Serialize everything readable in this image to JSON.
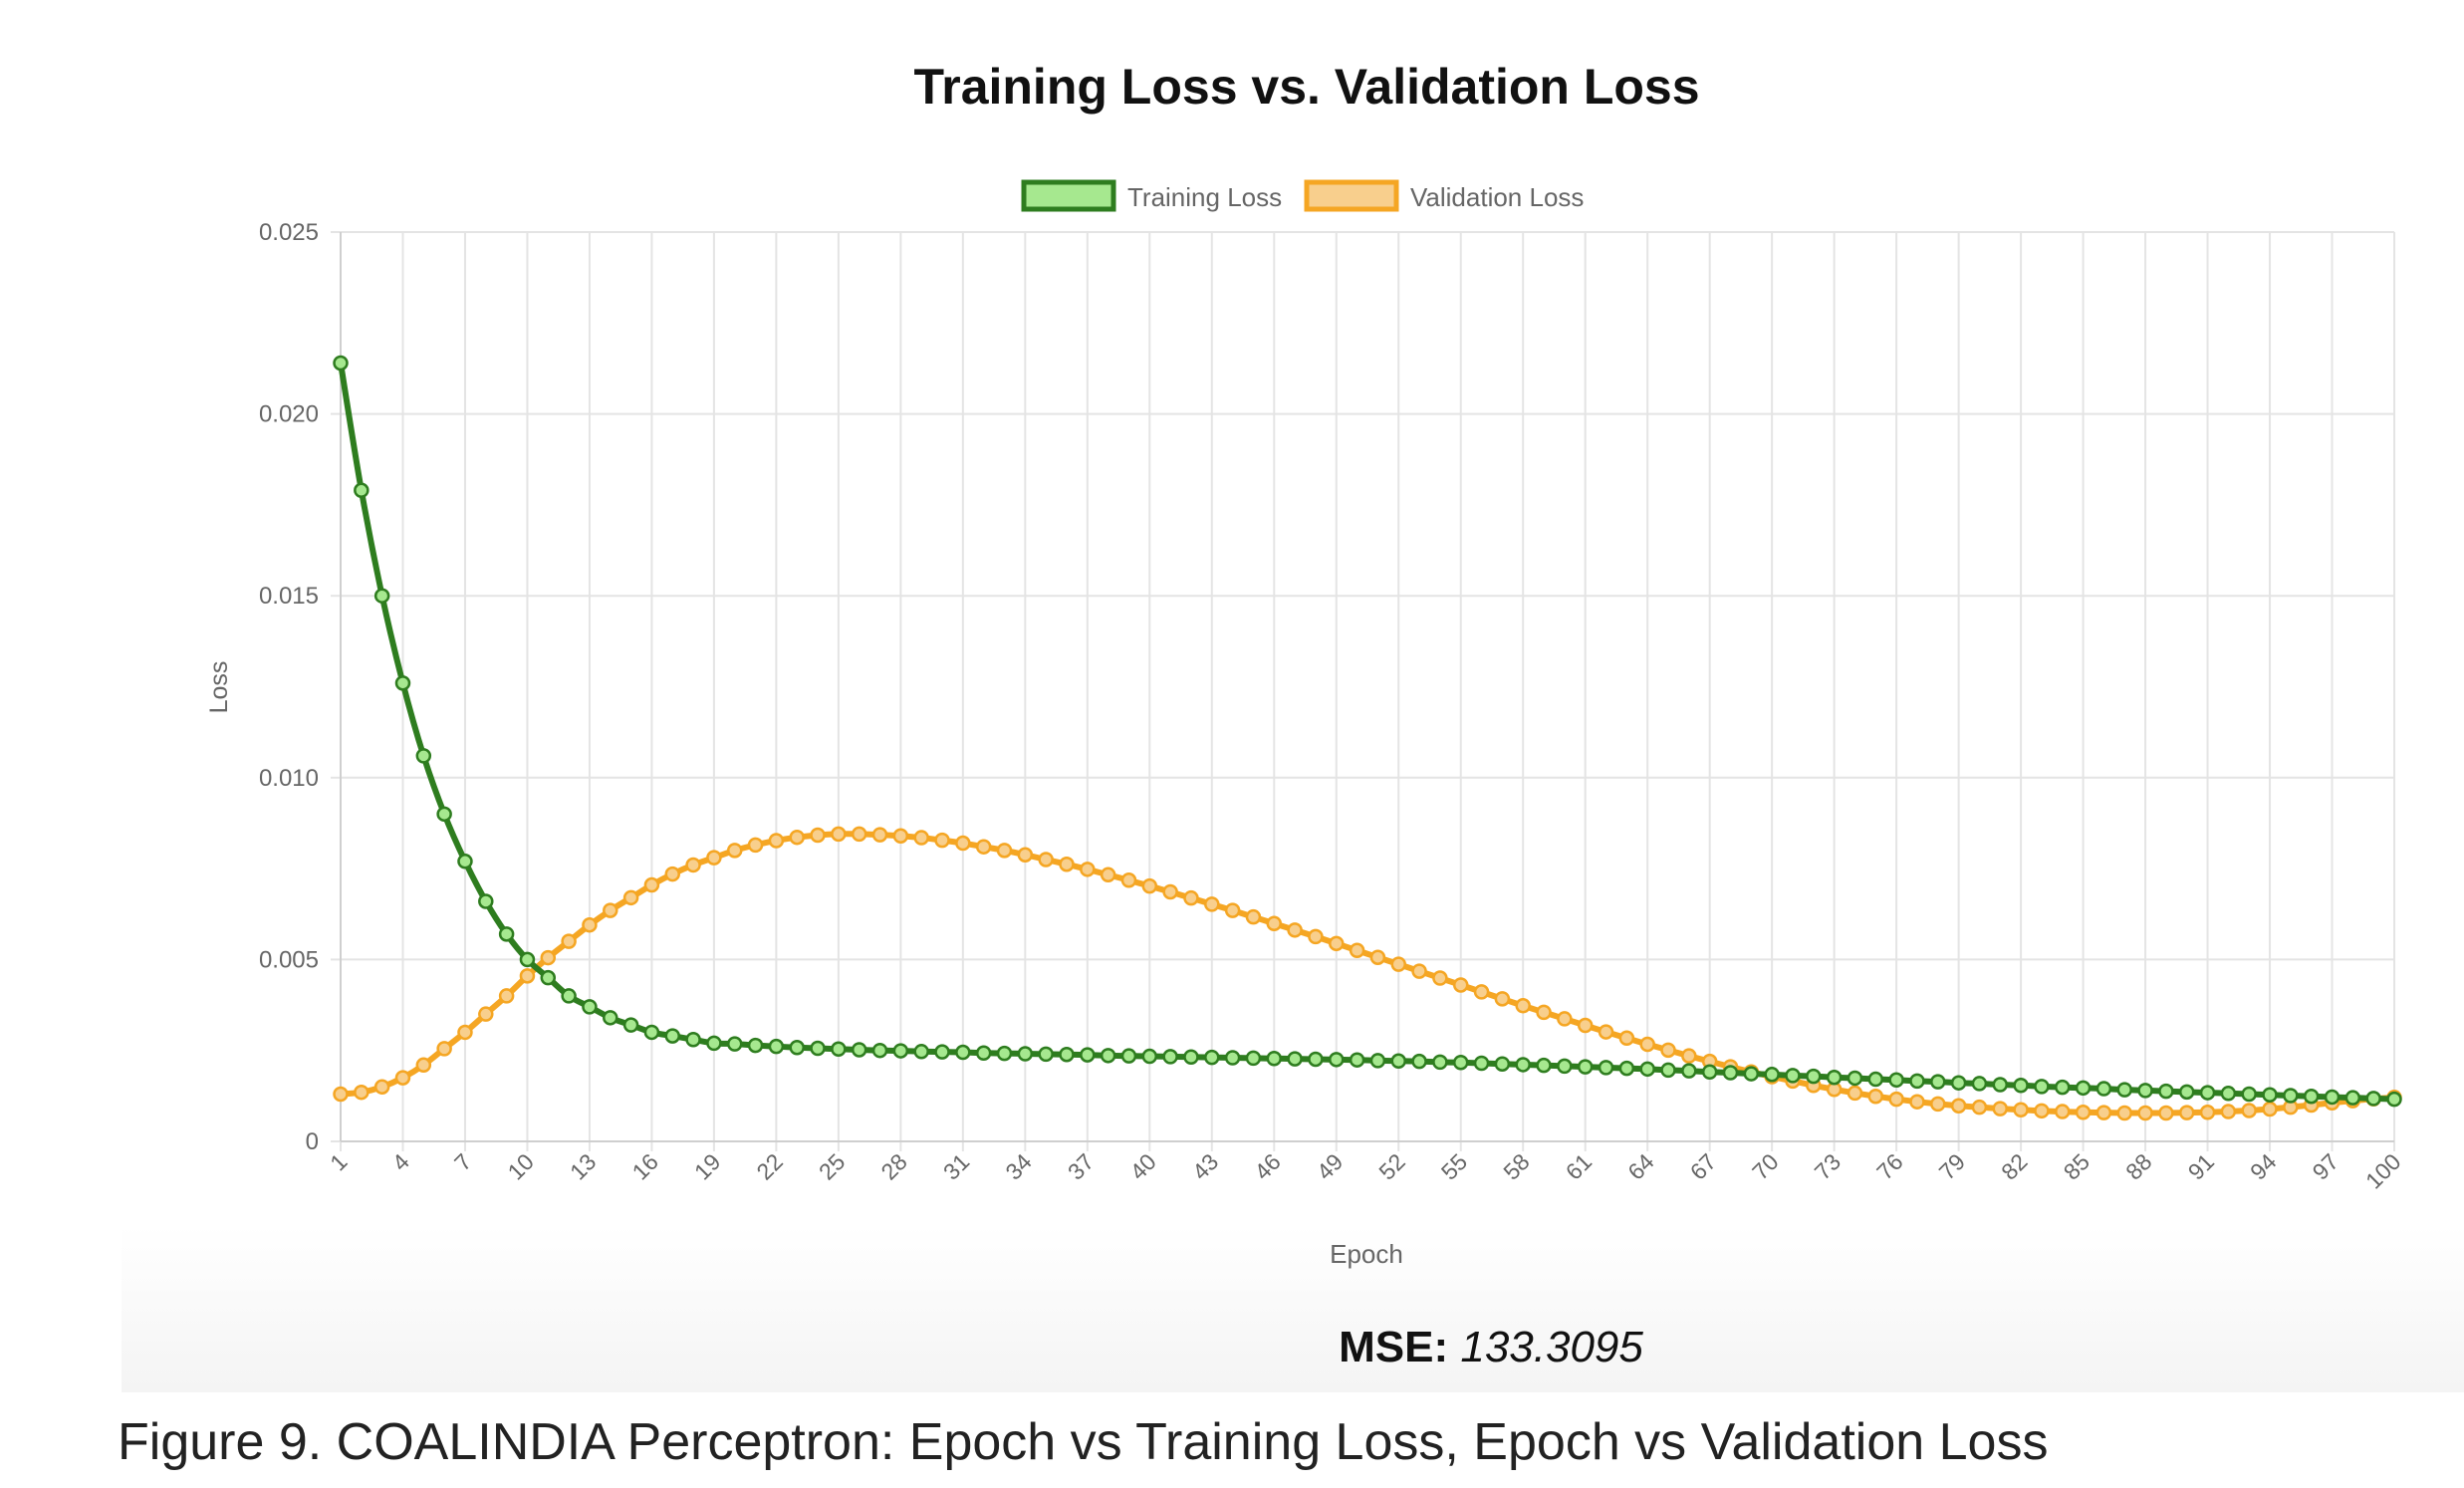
{
  "chart_data": {
    "type": "line",
    "title": "Training Loss vs. Validation Loss",
    "xlabel": "Epoch",
    "ylabel": "Loss",
    "ylim": [
      0,
      0.025
    ],
    "yticks": [
      "0",
      "0.005",
      "0.010",
      "0.015",
      "0.020",
      "0.025"
    ],
    "xlim": [
      1,
      100
    ],
    "xtick_step": 3,
    "grid": true,
    "legend": "top-center",
    "series": [
      {
        "name": "Training Loss",
        "color": "#2e7d1f",
        "fill": "#a6e88f",
        "values": [
          0.0214,
          0.0179,
          0.015,
          0.0126,
          0.0106,
          0.009,
          0.0077,
          0.0066,
          0.0057,
          0.005,
          0.0045,
          0.004,
          0.0037,
          0.0034,
          0.0032,
          0.003,
          0.0029,
          0.0028,
          0.0027,
          0.00268,
          0.00264,
          0.00261,
          0.00258,
          0.00256,
          0.00254,
          0.00252,
          0.0025,
          0.00249,
          0.00247,
          0.00246,
          0.00245,
          0.00243,
          0.00242,
          0.00241,
          0.0024,
          0.00239,
          0.00238,
          0.00236,
          0.00235,
          0.00234,
          0.00233,
          0.00232,
          0.00231,
          0.0023,
          0.00229,
          0.00228,
          0.00227,
          0.00226,
          0.00225,
          0.00224,
          0.00222,
          0.00221,
          0.0022,
          0.00218,
          0.00217,
          0.00215,
          0.00213,
          0.00211,
          0.00209,
          0.00207,
          0.00205,
          0.00203,
          0.00201,
          0.00199,
          0.00196,
          0.00194,
          0.00191,
          0.00189,
          0.00186,
          0.00184,
          0.00181,
          0.00179,
          0.00176,
          0.00174,
          0.00171,
          0.00169,
          0.00166,
          0.00164,
          0.00161,
          0.00159,
          0.00156,
          0.00154,
          0.00151,
          0.00149,
          0.00147,
          0.00145,
          0.00142,
          0.0014,
          0.00138,
          0.00136,
          0.00134,
          0.00132,
          0.0013,
          0.00128,
          0.00126,
          0.00124,
          0.00122,
          0.0012,
          0.00118,
          0.00116
        ]
      },
      {
        "name": "Validation Loss",
        "color": "#f5a623",
        "fill": "#f8cf8d",
        "values": [
          0.0013,
          0.00135,
          0.0015,
          0.00175,
          0.0021,
          0.00255,
          0.003,
          0.0035,
          0.004,
          0.00455,
          0.00505,
          0.0055,
          0.00595,
          0.00635,
          0.0067,
          0.00705,
          0.00735,
          0.0076,
          0.0078,
          0.008,
          0.00815,
          0.00827,
          0.00836,
          0.00842,
          0.00845,
          0.00845,
          0.00843,
          0.0084,
          0.00835,
          0.00828,
          0.0082,
          0.0081,
          0.008,
          0.00788,
          0.00775,
          0.00762,
          0.00748,
          0.00733,
          0.00718,
          0.00702,
          0.00686,
          0.00669,
          0.00652,
          0.00635,
          0.00617,
          0.00599,
          0.00581,
          0.00563,
          0.00544,
          0.00525,
          0.00506,
          0.00487,
          0.00468,
          0.00449,
          0.0043,
          0.00411,
          0.00392,
          0.00373,
          0.00355,
          0.00337,
          0.00319,
          0.00301,
          0.00284,
          0.00267,
          0.00251,
          0.00235,
          0.0022,
          0.00205,
          0.00191,
          0.00178,
          0.00166,
          0.00154,
          0.00143,
          0.00133,
          0.00124,
          0.00116,
          0.00109,
          0.00103,
          0.00098,
          0.00094,
          0.0009,
          0.00087,
          0.00084,
          0.00082,
          0.0008,
          0.00079,
          0.00078,
          0.00078,
          0.00078,
          0.00079,
          0.0008,
          0.00082,
          0.00085,
          0.00089,
          0.00094,
          0.001,
          0.00106,
          0.00112,
          0.00117,
          0.00121
        ]
      }
    ]
  },
  "mse": {
    "label": "MSE:",
    "value": "133.3095"
  },
  "caption": "Figure 9. COALINDIA Perceptron: Epoch vs Training Loss, Epoch vs Validation Loss"
}
